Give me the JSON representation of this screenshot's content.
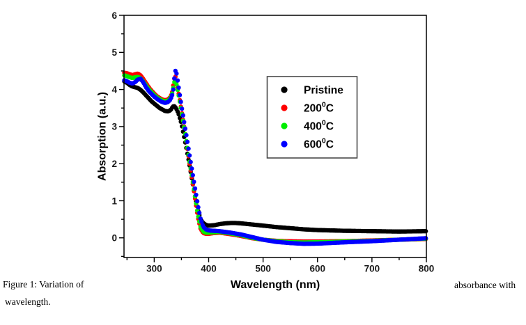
{
  "figure": {
    "caption_line1_left": "Figure 1: Variation of",
    "caption_line1_right": "absorbance with",
    "caption_line2": "wavelength."
  },
  "colors": {
    "background": "#ffffff",
    "axis": "#000000",
    "tick_label": "#1a1a1a",
    "legend_border": "#4a4a4a",
    "series_black": "#000000",
    "series_red": "#ff0000",
    "series_green": "#00ee00",
    "series_blue": "#0000ff"
  },
  "chart_data": {
    "type": "scatter",
    "title": "",
    "xlabel": "Wavelength (nm)",
    "ylabel": "Absorption (a.u.)",
    "xlim": [
      244.5,
      800
    ],
    "ylim": [
      -0.53,
      6
    ],
    "x_major_ticks": [
      300,
      400,
      500,
      600,
      700,
      800
    ],
    "x_minor_ticks": [
      250,
      350,
      450,
      550,
      650,
      750
    ],
    "y_major_ticks": [
      0,
      1,
      2,
      3,
      4,
      5,
      6
    ],
    "y_minor_ticks": [
      -0.5,
      0.5,
      1.5,
      2.5,
      3.5,
      4.5,
      5.5
    ],
    "grid": false,
    "legend": {
      "position": "upper-right-inside",
      "entries": [
        {
          "label": "Pristine",
          "sup": "",
          "post": "",
          "color": "#000000"
        },
        {
          "label": "200",
          "sup": "0",
          "post": "C",
          "color": "#ff0000"
        },
        {
          "label": "400",
          "sup": "0",
          "post": "C",
          "color": "#00ee00"
        },
        {
          "label": "600",
          "sup": "0",
          "post": "C",
          "color": "#0000ff"
        }
      ]
    },
    "series": [
      {
        "name": "Pristine",
        "color": "#000000",
        "points": [
          [
            245,
            4.22
          ],
          [
            250,
            4.18
          ],
          [
            255,
            4.12
          ],
          [
            260,
            4.08
          ],
          [
            265,
            4.06
          ],
          [
            270,
            4.04
          ],
          [
            275,
            3.99
          ],
          [
            280,
            3.92
          ],
          [
            285,
            3.84
          ],
          [
            290,
            3.76
          ],
          [
            295,
            3.68
          ],
          [
            300,
            3.62
          ],
          [
            305,
            3.56
          ],
          [
            310,
            3.5
          ],
          [
            315,
            3.46
          ],
          [
            320,
            3.42
          ],
          [
            325,
            3.41
          ],
          [
            330,
            3.44
          ],
          [
            333,
            3.51
          ],
          [
            336,
            3.56
          ],
          [
            339,
            3.52
          ],
          [
            342,
            3.44
          ],
          [
            345,
            3.33
          ],
          [
            350,
            3.08
          ],
          [
            355,
            2.72
          ],
          [
            360,
            2.35
          ],
          [
            365,
            1.95
          ],
          [
            370,
            1.52
          ],
          [
            375,
            1.12
          ],
          [
            380,
            0.78
          ],
          [
            385,
            0.5
          ],
          [
            390,
            0.4
          ],
          [
            395,
            0.35
          ],
          [
            400,
            0.33
          ],
          [
            410,
            0.34
          ],
          [
            420,
            0.37
          ],
          [
            430,
            0.39
          ],
          [
            440,
            0.4
          ],
          [
            450,
            0.4
          ],
          [
            460,
            0.39
          ],
          [
            480,
            0.36
          ],
          [
            500,
            0.33
          ],
          [
            525,
            0.29
          ],
          [
            550,
            0.26
          ],
          [
            575,
            0.23
          ],
          [
            600,
            0.21
          ],
          [
            650,
            0.19
          ],
          [
            700,
            0.18
          ],
          [
            750,
            0.17
          ],
          [
            800,
            0.18
          ]
        ]
      },
      {
        "name": "200C",
        "color": "#ff0000",
        "points": [
          [
            245,
            4.45
          ],
          [
            250,
            4.44
          ],
          [
            255,
            4.41
          ],
          [
            260,
            4.39
          ],
          [
            265,
            4.41
          ],
          [
            270,
            4.43
          ],
          [
            275,
            4.38
          ],
          [
            280,
            4.28
          ],
          [
            285,
            4.17
          ],
          [
            290,
            4.06
          ],
          [
            295,
            3.97
          ],
          [
            300,
            3.89
          ],
          [
            305,
            3.82
          ],
          [
            310,
            3.77
          ],
          [
            315,
            3.73
          ],
          [
            320,
            3.71
          ],
          [
            325,
            3.73
          ],
          [
            330,
            3.8
          ],
          [
            333,
            3.93
          ],
          [
            336,
            4.2
          ],
          [
            338,
            4.38
          ],
          [
            340,
            4.31
          ],
          [
            343,
            4.06
          ],
          [
            346,
            3.8
          ],
          [
            350,
            3.45
          ],
          [
            355,
            3.0
          ],
          [
            360,
            2.5
          ],
          [
            365,
            2.0
          ],
          [
            370,
            1.55
          ],
          [
            375,
            1.06
          ],
          [
            380,
            0.58
          ],
          [
            385,
            0.25
          ],
          [
            390,
            0.13
          ],
          [
            395,
            0.11
          ],
          [
            400,
            0.11
          ],
          [
            410,
            0.13
          ],
          [
            420,
            0.14
          ],
          [
            430,
            0.12
          ],
          [
            440,
            0.1
          ],
          [
            460,
            0.05
          ],
          [
            480,
            -0.01
          ],
          [
            500,
            -0.05
          ],
          [
            525,
            -0.08
          ],
          [
            550,
            -0.095
          ],
          [
            575,
            -0.1
          ],
          [
            600,
            -0.1
          ],
          [
            650,
            -0.09
          ],
          [
            700,
            -0.07
          ],
          [
            750,
            -0.05
          ],
          [
            800,
            -0.03
          ]
        ]
      },
      {
        "name": "400C",
        "color": "#00ee00",
        "points": [
          [
            245,
            4.38
          ],
          [
            250,
            4.36
          ],
          [
            255,
            4.33
          ],
          [
            260,
            4.31
          ],
          [
            265,
            4.33
          ],
          [
            270,
            4.34
          ],
          [
            275,
            4.3
          ],
          [
            280,
            4.21
          ],
          [
            285,
            4.11
          ],
          [
            290,
            4.01
          ],
          [
            295,
            3.93
          ],
          [
            300,
            3.85
          ],
          [
            305,
            3.79
          ],
          [
            310,
            3.74
          ],
          [
            315,
            3.7
          ],
          [
            320,
            3.68
          ],
          [
            325,
            3.7
          ],
          [
            330,
            3.77
          ],
          [
            333,
            3.89
          ],
          [
            336,
            4.12
          ],
          [
            338,
            4.28
          ],
          [
            340,
            4.21
          ],
          [
            343,
            3.99
          ],
          [
            346,
            3.76
          ],
          [
            350,
            3.42
          ],
          [
            355,
            2.98
          ],
          [
            360,
            2.52
          ],
          [
            365,
            2.05
          ],
          [
            370,
            1.6
          ],
          [
            375,
            1.12
          ],
          [
            380,
            0.64
          ],
          [
            385,
            0.3
          ],
          [
            390,
            0.17
          ],
          [
            395,
            0.14
          ],
          [
            400,
            0.14
          ],
          [
            410,
            0.15
          ],
          [
            420,
            0.16
          ],
          [
            430,
            0.14
          ],
          [
            440,
            0.12
          ],
          [
            460,
            0.07
          ],
          [
            480,
            0.0
          ],
          [
            500,
            -0.05
          ],
          [
            525,
            -0.09
          ],
          [
            550,
            -0.12
          ],
          [
            575,
            -0.125
          ],
          [
            600,
            -0.12
          ],
          [
            650,
            -0.1
          ],
          [
            700,
            -0.08
          ],
          [
            750,
            -0.05
          ],
          [
            800,
            -0.02
          ]
        ]
      },
      {
        "name": "600C",
        "color": "#0000ff",
        "points": [
          [
            245,
            4.25
          ],
          [
            250,
            4.22
          ],
          [
            255,
            4.18
          ],
          [
            260,
            4.16
          ],
          [
            265,
            4.2
          ],
          [
            270,
            4.27
          ],
          [
            275,
            4.29
          ],
          [
            280,
            4.19
          ],
          [
            285,
            4.06
          ],
          [
            290,
            3.96
          ],
          [
            295,
            3.88
          ],
          [
            300,
            3.81
          ],
          [
            305,
            3.75
          ],
          [
            310,
            3.7
          ],
          [
            315,
            3.66
          ],
          [
            320,
            3.64
          ],
          [
            325,
            3.66
          ],
          [
            330,
            3.73
          ],
          [
            333,
            3.85
          ],
          [
            335,
            4.0
          ],
          [
            337,
            4.3
          ],
          [
            339,
            4.5
          ],
          [
            341,
            4.43
          ],
          [
            344,
            4.15
          ],
          [
            347,
            3.85
          ],
          [
            351,
            3.48
          ],
          [
            355,
            3.12
          ],
          [
            360,
            2.68
          ],
          [
            365,
            2.22
          ],
          [
            370,
            1.78
          ],
          [
            375,
            1.33
          ],
          [
            380,
            0.9
          ],
          [
            385,
            0.52
          ],
          [
            390,
            0.3
          ],
          [
            395,
            0.23
          ],
          [
            400,
            0.2
          ],
          [
            410,
            0.19
          ],
          [
            420,
            0.18
          ],
          [
            430,
            0.16
          ],
          [
            440,
            0.14
          ],
          [
            460,
            0.09
          ],
          [
            480,
            0.02
          ],
          [
            500,
            -0.05
          ],
          [
            525,
            -0.11
          ],
          [
            550,
            -0.14
          ],
          [
            575,
            -0.16
          ],
          [
            600,
            -0.155
          ],
          [
            650,
            -0.12
          ],
          [
            700,
            -0.09
          ],
          [
            750,
            -0.05
          ],
          [
            800,
            -0.01
          ]
        ]
      }
    ]
  }
}
